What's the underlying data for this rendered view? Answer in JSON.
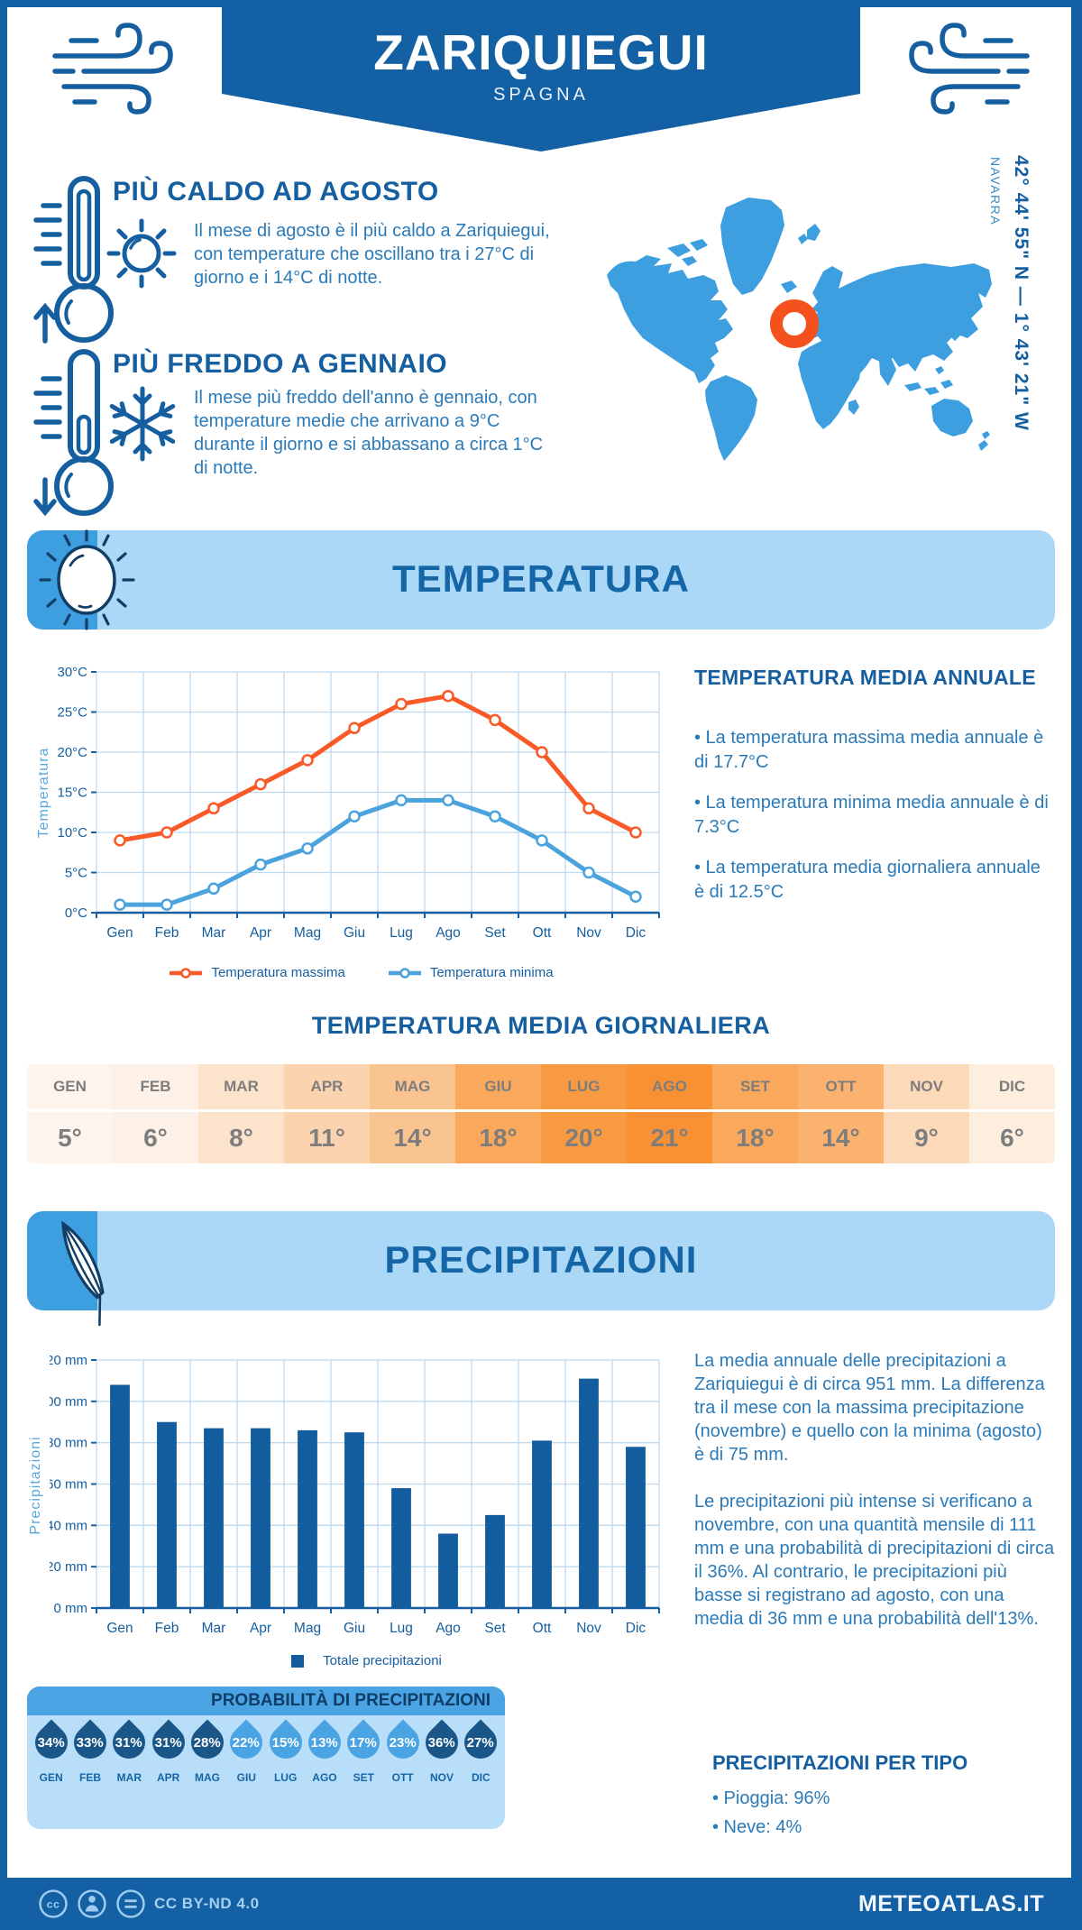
{
  "page": {
    "frame_color": "#1360a4",
    "accent_light_blue": "#abd8f6",
    "accent_mid_blue": "#3d9fe0"
  },
  "header": {
    "title": "ZARIQUIEGUI",
    "subtitle": "SPAGNA"
  },
  "highlights": {
    "warm": {
      "title": "PIÙ CALDO AD AGOSTO",
      "text": "Il mese di agosto è il più caldo a Zariquiegui, con temperature che oscillano tra i 27°C di giorno e i 14°C di notte."
    },
    "cold": {
      "title": "PIÙ FREDDO A GENNAIO",
      "text": "Il mese più freddo dell'anno è gennaio, con temperature medie che arrivano a 9°C durante il giorno e si abbassano a circa 1°C di notte."
    }
  },
  "map": {
    "coordinates": "42° 44' 55\" N — 1° 43' 21\" W",
    "region": "NAVARRA",
    "land_color": "#3d9fe0",
    "marker_color": "#f4511e"
  },
  "sections": {
    "temperature": {
      "banner": "TEMPERATURA",
      "annual": {
        "title": "TEMPERATURA MEDIA ANNUALE",
        "bullets": [
          "• La temperatura massima media annuale è di 17.7°C",
          "• La temperatura minima media annuale è di 7.3°C",
          "• La temperatura media giornaliera annuale è di 12.5°C"
        ]
      },
      "daily": {
        "title": "TEMPERATURA MEDIA GIORNALIERA",
        "months": [
          "GEN",
          "FEB",
          "MAR",
          "APR",
          "MAG",
          "GIU",
          "LUG",
          "AGO",
          "SET",
          "OTT",
          "NOV",
          "DIC"
        ],
        "values": [
          "5°",
          "6°",
          "8°",
          "11°",
          "14°",
          "18°",
          "20°",
          "21°",
          "18°",
          "14°",
          "9°",
          "6°"
        ],
        "cell_colors": [
          "#fdf4ed",
          "#fdf1e7",
          "#fce3cc",
          "#fbd4af",
          "#fac491",
          "#f9a85c",
          "#f89a41",
          "#f79134",
          "#f9a85c",
          "#fab26e",
          "#fcd9b8",
          "#fdeede"
        ],
        "text_color": "#7d7d7d"
      }
    },
    "precipitation": {
      "banner": "PRECIPITAZIONI",
      "paragraphs": [
        "La media annuale delle precipitazioni a Zariquiegui è di circa 951 mm. La differenza tra il mese con la massima precipitazione (novembre) e quello con la minima (agosto) è di 75 mm.",
        "Le precipitazioni più intense si verificano a novembre, con una quantità mensile di 111 mm e una probabilità di precipitazioni di circa il 36%. Al contrario, le precipitazioni più basse si registrano ad agosto, con una media di 36 mm e una probabilità dell'13%."
      ],
      "probability": {
        "title": "PROBABILITÀ DI PRECIPITAZIONI",
        "months": [
          "GEN",
          "FEB",
          "MAR",
          "APR",
          "MAG",
          "GIU",
          "LUG",
          "AGO",
          "SET",
          "OTT",
          "NOV",
          "DIC"
        ],
        "values": [
          "34%",
          "33%",
          "31%",
          "31%",
          "28%",
          "22%",
          "15%",
          "13%",
          "17%",
          "23%",
          "36%",
          "27%"
        ],
        "dark_flags": [
          true,
          true,
          true,
          true,
          true,
          false,
          false,
          false,
          false,
          false,
          true,
          true
        ],
        "dark_color": "#1b5688",
        "light_color": "#4aa3e3"
      },
      "types": {
        "title": "PRECIPITAZIONI PER TIPO",
        "bullets": [
          "• Pioggia: 96%",
          "• Neve: 4%"
        ]
      }
    }
  },
  "chart_data": [
    {
      "type": "line",
      "title": "",
      "categories": [
        "Gen",
        "Feb",
        "Mar",
        "Apr",
        "Mag",
        "Giu",
        "Lug",
        "Ago",
        "Set",
        "Ott",
        "Nov",
        "Dic"
      ],
      "series": [
        {
          "name": "Temperatura massima",
          "color": "#fa5a28",
          "values": [
            9,
            10,
            13,
            16,
            19,
            23,
            26,
            27,
            24,
            20,
            13,
            10
          ]
        },
        {
          "name": "Temperatura minima",
          "color": "#4aa3dd",
          "values": [
            1,
            1,
            3,
            6,
            8,
            12,
            14,
            14,
            12,
            9,
            5,
            2
          ]
        }
      ],
      "xlabel": "",
      "ylabel": "Temperatura",
      "ytick_suffix": "°C",
      "ylim": [
        0,
        30
      ],
      "ystep": 5,
      "grid": true,
      "legend_position": "bottom"
    },
    {
      "type": "bar",
      "title": "",
      "categories": [
        "Gen",
        "Feb",
        "Mar",
        "Apr",
        "Mag",
        "Giu",
        "Lug",
        "Ago",
        "Set",
        "Ott",
        "Nov",
        "Dic"
      ],
      "series": [
        {
          "name": "Totale precipitazioni",
          "color": "#135d9e",
          "values": [
            108,
            90,
            87,
            87,
            86,
            85,
            58,
            36,
            45,
            81,
            111,
            78
          ]
        }
      ],
      "xlabel": "",
      "ylabel": "Precipitazioni",
      "ytick_suffix": " mm",
      "ylim": [
        0,
        120
      ],
      "ystep": 20,
      "grid": true,
      "legend_position": "bottom"
    }
  ],
  "footer": {
    "license": "CC BY-ND 4.0",
    "site": "METEOATLAS.IT"
  }
}
